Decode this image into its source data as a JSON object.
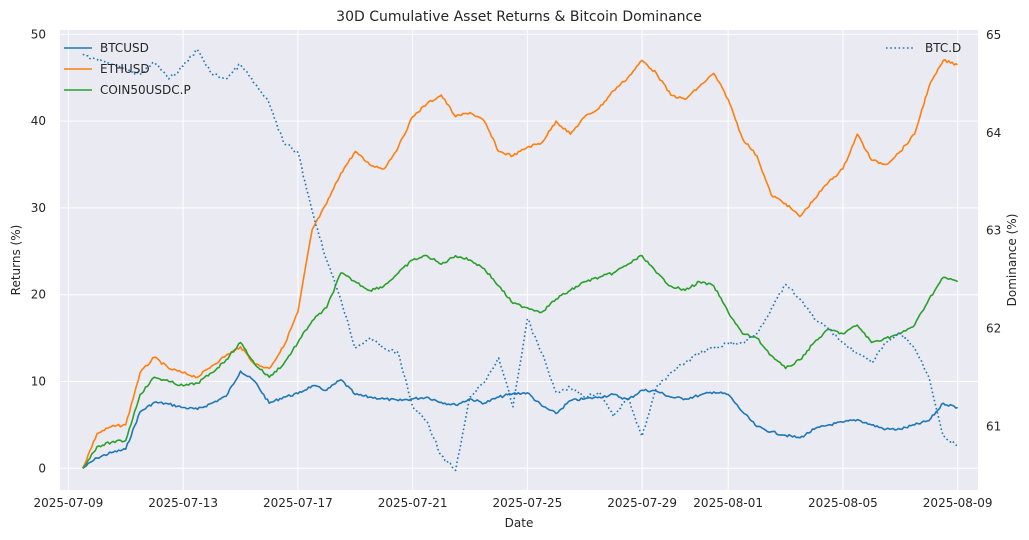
{
  "chart_data": {
    "type": "line",
    "title": "30D Cumulative Asset Returns & Bitcoin Dominance",
    "xlabel": "Date",
    "ylabel": "Returns (%)",
    "y2label": "Dominance (%)",
    "xlim": [
      "2025-07-08T17:00",
      "2025-08-09T17:00"
    ],
    "ylim": [
      -2.5,
      50.5
    ],
    "y2lim": [
      60.35,
      65.05
    ],
    "x_ticks": [
      "2025-07-09",
      "2025-07-13",
      "2025-07-17",
      "2025-07-21",
      "2025-07-25",
      "2025-07-29",
      "2025-08-01",
      "2025-08-05",
      "2025-08-09"
    ],
    "x_tick_labels": [
      "2025-07-09",
      "2025-07-13",
      "2025-07-17",
      "2025-07-21",
      "2025-07-25",
      "2025-07-29",
      "2025-08-01",
      "2025-08-05",
      "2025-08-09"
    ],
    "y_ticks": [
      0,
      10,
      20,
      30,
      40,
      50
    ],
    "y_tick_labels": [
      "0",
      "10",
      "20",
      "30",
      "40",
      "50"
    ],
    "y2_ticks": [
      61,
      62,
      63,
      64,
      65
    ],
    "y2_tick_labels": [
      "61",
      "62",
      "63",
      "64",
      "65"
    ],
    "grid": true,
    "legend_left": "top-left",
    "legend_right": "top-right",
    "background": "#eaeaf2",
    "series": [
      {
        "name": "BTCUSD",
        "axis": "left",
        "color": "#1f77b4",
        "style": "solid",
        "x": [
          "2025-07-09T12:00",
          "2025-07-10T00:00",
          "2025-07-10T12:00",
          "2025-07-11T00:00",
          "2025-07-11T12:00",
          "2025-07-12T00:00",
          "2025-07-12T12:00",
          "2025-07-13T00:00",
          "2025-07-13T12:00",
          "2025-07-14T00:00",
          "2025-07-14T12:00",
          "2025-07-15T00:00",
          "2025-07-15T12:00",
          "2025-07-16T00:00",
          "2025-07-16T12:00",
          "2025-07-17T00:00",
          "2025-07-17T12:00",
          "2025-07-18T00:00",
          "2025-07-18T12:00",
          "2025-07-19T00:00",
          "2025-07-19T12:00",
          "2025-07-20T00:00",
          "2025-07-20T12:00",
          "2025-07-21T00:00",
          "2025-07-21T12:00",
          "2025-07-22T00:00",
          "2025-07-22T12:00",
          "2025-07-23T00:00",
          "2025-07-23T12:00",
          "2025-07-24T00:00",
          "2025-07-24T12:00",
          "2025-07-25T00:00",
          "2025-07-25T12:00",
          "2025-07-26T00:00",
          "2025-07-26T12:00",
          "2025-07-27T00:00",
          "2025-07-27T12:00",
          "2025-07-28T00:00",
          "2025-07-28T12:00",
          "2025-07-29T00:00",
          "2025-07-29T12:00",
          "2025-07-30T00:00",
          "2025-07-30T12:00",
          "2025-07-31T00:00",
          "2025-07-31T12:00",
          "2025-08-01T00:00",
          "2025-08-01T12:00",
          "2025-08-02T00:00",
          "2025-08-02T12:00",
          "2025-08-03T00:00",
          "2025-08-03T12:00",
          "2025-08-04T00:00",
          "2025-08-04T12:00",
          "2025-08-05T00:00",
          "2025-08-05T12:00",
          "2025-08-06T00:00",
          "2025-08-06T12:00",
          "2025-08-07T00:00",
          "2025-08-07T12:00",
          "2025-08-08T00:00",
          "2025-08-08T12:00",
          "2025-08-09T00:00"
        ],
        "values": [
          0,
          1.2,
          1.8,
          2.2,
          6.5,
          7.6,
          7.4,
          7.0,
          6.8,
          7.5,
          8.3,
          11.2,
          10.0,
          7.5,
          8.2,
          8.6,
          9.5,
          9.0,
          10.2,
          8.5,
          8.2,
          8.0,
          7.8,
          8.0,
          8.2,
          7.6,
          7.3,
          8.0,
          7.5,
          8.2,
          8.6,
          8.7,
          7.2,
          6.3,
          7.8,
          8.0,
          8.2,
          8.5,
          7.9,
          9.0,
          8.9,
          8.2,
          8.0,
          8.4,
          8.8,
          8.5,
          6.5,
          4.8,
          4.2,
          3.8,
          3.5,
          4.5,
          5.0,
          5.3,
          5.6,
          5.0,
          4.5,
          4.5,
          5.0,
          5.5,
          7.5,
          7.0
        ]
      },
      {
        "name": "ETHUSD",
        "axis": "left",
        "color": "#ff7f0e",
        "style": "solid",
        "x": [
          "2025-07-09T12:00",
          "2025-07-10T00:00",
          "2025-07-10T12:00",
          "2025-07-11T00:00",
          "2025-07-11T12:00",
          "2025-07-12T00:00",
          "2025-07-12T12:00",
          "2025-07-13T00:00",
          "2025-07-13T12:00",
          "2025-07-14T00:00",
          "2025-07-14T12:00",
          "2025-07-15T00:00",
          "2025-07-15T12:00",
          "2025-07-16T00:00",
          "2025-07-16T12:00",
          "2025-07-17T00:00",
          "2025-07-17T12:00",
          "2025-07-18T00:00",
          "2025-07-18T12:00",
          "2025-07-19T00:00",
          "2025-07-19T12:00",
          "2025-07-20T00:00",
          "2025-07-20T12:00",
          "2025-07-21T00:00",
          "2025-07-21T12:00",
          "2025-07-22T00:00",
          "2025-07-22T12:00",
          "2025-07-23T00:00",
          "2025-07-23T12:00",
          "2025-07-24T00:00",
          "2025-07-24T12:00",
          "2025-07-25T00:00",
          "2025-07-25T12:00",
          "2025-07-26T00:00",
          "2025-07-26T12:00",
          "2025-07-27T00:00",
          "2025-07-27T12:00",
          "2025-07-28T00:00",
          "2025-07-28T12:00",
          "2025-07-29T00:00",
          "2025-07-29T12:00",
          "2025-07-30T00:00",
          "2025-07-30T12:00",
          "2025-07-31T00:00",
          "2025-07-31T12:00",
          "2025-08-01T00:00",
          "2025-08-01T12:00",
          "2025-08-02T00:00",
          "2025-08-02T12:00",
          "2025-08-03T00:00",
          "2025-08-03T12:00",
          "2025-08-04T00:00",
          "2025-08-04T12:00",
          "2025-08-05T00:00",
          "2025-08-05T12:00",
          "2025-08-06T00:00",
          "2025-08-06T12:00",
          "2025-08-07T00:00",
          "2025-08-07T12:00",
          "2025-08-08T00:00",
          "2025-08-08T12:00",
          "2025-08-09T00:00"
        ],
        "values": [
          0,
          4.0,
          4.8,
          5.0,
          11.0,
          12.8,
          11.5,
          11.0,
          10.5,
          11.8,
          13.0,
          14.0,
          12.0,
          11.5,
          14.0,
          18.0,
          27.5,
          30.5,
          34.0,
          36.5,
          35.0,
          34.5,
          37.0,
          40.5,
          42.0,
          43.0,
          40.5,
          41.0,
          40.0,
          36.5,
          36.0,
          37.0,
          37.5,
          40.0,
          38.5,
          40.5,
          41.5,
          43.5,
          45.0,
          47.0,
          45.5,
          43.0,
          42.5,
          44.0,
          45.5,
          42.5,
          38.0,
          36.0,
          31.5,
          30.5,
          29.0,
          31.0,
          33.0,
          34.5,
          38.5,
          35.5,
          35.0,
          36.5,
          38.5,
          44.0,
          47.0,
          46.5
        ]
      },
      {
        "name": "COIN50USDC.P",
        "axis": "left",
        "color": "#2ca02c",
        "style": "solid",
        "x": [
          "2025-07-09T12:00",
          "2025-07-10T00:00",
          "2025-07-10T12:00",
          "2025-07-11T00:00",
          "2025-07-11T12:00",
          "2025-07-12T00:00",
          "2025-07-12T12:00",
          "2025-07-13T00:00",
          "2025-07-13T12:00",
          "2025-07-14T00:00",
          "2025-07-14T12:00",
          "2025-07-15T00:00",
          "2025-07-15T12:00",
          "2025-07-16T00:00",
          "2025-07-16T12:00",
          "2025-07-17T00:00",
          "2025-07-17T12:00",
          "2025-07-18T00:00",
          "2025-07-18T12:00",
          "2025-07-19T00:00",
          "2025-07-19T12:00",
          "2025-07-20T00:00",
          "2025-07-20T12:00",
          "2025-07-21T00:00",
          "2025-07-21T12:00",
          "2025-07-22T00:00",
          "2025-07-22T12:00",
          "2025-07-23T00:00",
          "2025-07-23T12:00",
          "2025-07-24T00:00",
          "2025-07-24T12:00",
          "2025-07-25T00:00",
          "2025-07-25T12:00",
          "2025-07-26T00:00",
          "2025-07-26T12:00",
          "2025-07-27T00:00",
          "2025-07-27T12:00",
          "2025-07-28T00:00",
          "2025-07-28T12:00",
          "2025-07-29T00:00",
          "2025-07-29T12:00",
          "2025-07-30T00:00",
          "2025-07-30T12:00",
          "2025-07-31T00:00",
          "2025-07-31T12:00",
          "2025-08-01T00:00",
          "2025-08-01T12:00",
          "2025-08-02T00:00",
          "2025-08-02T12:00",
          "2025-08-03T00:00",
          "2025-08-03T12:00",
          "2025-08-04T00:00",
          "2025-08-04T12:00",
          "2025-08-05T00:00",
          "2025-08-05T12:00",
          "2025-08-06T00:00",
          "2025-08-06T12:00",
          "2025-08-07T00:00",
          "2025-08-07T12:00",
          "2025-08-08T00:00",
          "2025-08-08T12:00",
          "2025-08-09T00:00"
        ],
        "values": [
          0,
          2.5,
          3.0,
          3.2,
          8.5,
          10.5,
          10.0,
          9.5,
          9.8,
          11.0,
          12.5,
          14.5,
          12.0,
          10.5,
          12.0,
          14.5,
          17.0,
          18.5,
          22.5,
          21.5,
          20.5,
          21.0,
          22.5,
          24.0,
          24.5,
          23.5,
          24.5,
          24.0,
          23.0,
          21.0,
          19.0,
          18.5,
          18.0,
          19.5,
          20.5,
          21.5,
          22.0,
          22.5,
          23.5,
          24.5,
          22.5,
          21.0,
          20.5,
          21.5,
          21.0,
          18.0,
          15.5,
          15.0,
          13.0,
          11.5,
          12.5,
          14.5,
          16.0,
          15.5,
          16.5,
          14.5,
          15.0,
          15.5,
          16.5,
          19.5,
          22.0,
          21.5
        ]
      },
      {
        "name": "BTC.D",
        "axis": "right",
        "color": "#1f77b4",
        "style": "dotted",
        "x": [
          "2025-07-09T12:00",
          "2025-07-10T00:00",
          "2025-07-10T12:00",
          "2025-07-11T00:00",
          "2025-07-11T12:00",
          "2025-07-12T00:00",
          "2025-07-12T12:00",
          "2025-07-13T00:00",
          "2025-07-13T12:00",
          "2025-07-14T00:00",
          "2025-07-14T12:00",
          "2025-07-15T00:00",
          "2025-07-15T12:00",
          "2025-07-16T00:00",
          "2025-07-16T12:00",
          "2025-07-17T00:00",
          "2025-07-17T12:00",
          "2025-07-18T00:00",
          "2025-07-18T12:00",
          "2025-07-19T00:00",
          "2025-07-19T12:00",
          "2025-07-20T00:00",
          "2025-07-20T12:00",
          "2025-07-21T00:00",
          "2025-07-21T12:00",
          "2025-07-22T00:00",
          "2025-07-22T12:00",
          "2025-07-23T00:00",
          "2025-07-23T12:00",
          "2025-07-24T00:00",
          "2025-07-24T12:00",
          "2025-07-25T00:00",
          "2025-07-25T12:00",
          "2025-07-26T00:00",
          "2025-07-26T12:00",
          "2025-07-27T00:00",
          "2025-07-27T12:00",
          "2025-07-28T00:00",
          "2025-07-28T12:00",
          "2025-07-29T00:00",
          "2025-07-29T12:00",
          "2025-07-30T00:00",
          "2025-07-30T12:00",
          "2025-07-31T00:00",
          "2025-07-31T12:00",
          "2025-08-01T00:00",
          "2025-08-01T12:00",
          "2025-08-02T00:00",
          "2025-08-02T12:00",
          "2025-08-03T00:00",
          "2025-08-03T12:00",
          "2025-08-04T00:00",
          "2025-08-04T12:00",
          "2025-08-05T00:00",
          "2025-08-05T12:00",
          "2025-08-06T00:00",
          "2025-08-06T12:00",
          "2025-08-07T00:00",
          "2025-08-07T12:00",
          "2025-08-08T00:00",
          "2025-08-08T12:00",
          "2025-08-09T00:00"
        ],
        "values": [
          64.8,
          64.75,
          64.7,
          64.65,
          64.6,
          64.72,
          64.55,
          64.68,
          64.85,
          64.6,
          64.55,
          64.7,
          64.5,
          64.3,
          63.9,
          63.8,
          63.2,
          62.7,
          62.3,
          61.8,
          61.9,
          61.8,
          61.75,
          61.2,
          61.05,
          60.7,
          60.55,
          61.3,
          61.45,
          61.7,
          61.2,
          62.1,
          61.75,
          61.35,
          61.4,
          61.3,
          61.35,
          61.1,
          61.3,
          60.9,
          61.4,
          61.55,
          61.65,
          61.75,
          61.8,
          61.85,
          61.85,
          61.95,
          62.2,
          62.45,
          62.3,
          62.1,
          62.0,
          61.85,
          61.75,
          61.65,
          61.85,
          61.95,
          61.8,
          61.5,
          60.9,
          60.8
        ]
      }
    ]
  }
}
